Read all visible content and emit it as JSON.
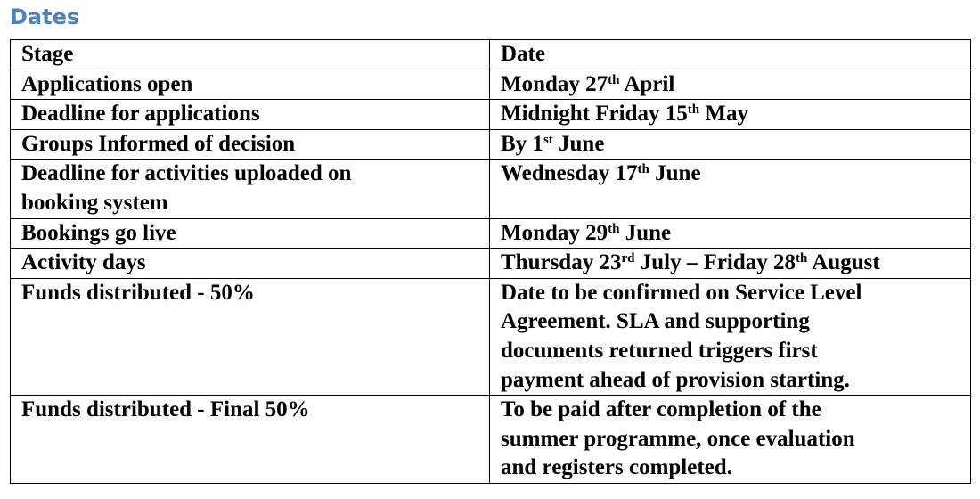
{
  "header": {
    "title": "Dates"
  },
  "table": {
    "columns": [
      "Stage",
      "Date"
    ],
    "rows": [
      {
        "stage": [
          "Applications open"
        ],
        "date": [
          [
            "Monday 27",
            {
              "sup": "th"
            },
            " April"
          ]
        ]
      },
      {
        "stage": [
          "Deadline for applications"
        ],
        "date": [
          [
            "Midnight Friday 15",
            {
              "sup": "th"
            },
            " May"
          ]
        ]
      },
      {
        "stage": [
          "Groups Informed of decision"
        ],
        "date": [
          [
            "By 1",
            {
              "sup": "st"
            },
            " June"
          ]
        ]
      },
      {
        "stage": [
          "Deadline for activities uploaded on",
          "booking system"
        ],
        "date": [
          [
            "Wednesday 17",
            {
              "sup": "th"
            },
            " June"
          ]
        ]
      },
      {
        "stage": [
          "Bookings go live"
        ],
        "date": [
          [
            "Monday 29",
            {
              "sup": "th"
            },
            " June"
          ]
        ]
      },
      {
        "stage": [
          "Activity days"
        ],
        "date": [
          [
            "Thursday 23",
            {
              "sup": "rd"
            },
            " July – Friday 28",
            {
              "sup": "th"
            },
            " August"
          ]
        ]
      },
      {
        "stage": [
          "Funds distributed - 50%"
        ],
        "date": [
          [
            "Date to be confirmed on Service Level"
          ],
          [
            "Agreement. SLA and supporting"
          ],
          [
            "documents returned triggers first"
          ],
          [
            "payment ahead of provision starting."
          ]
        ]
      },
      {
        "stage": [
          "Funds distributed - Final 50%"
        ],
        "date": [
          [
            "To be paid after completion of the"
          ],
          [
            "summer programme, once evaluation"
          ],
          [
            "and registers completed."
          ]
        ]
      }
    ]
  }
}
